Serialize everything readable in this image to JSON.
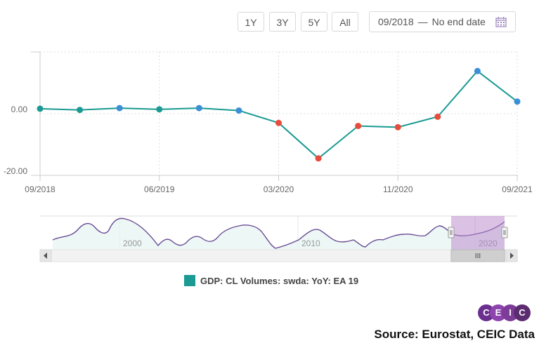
{
  "toolbar": {
    "buttons": [
      "1Y",
      "3Y",
      "5Y",
      "All"
    ],
    "range_start": "09/2018",
    "range_separator": "—",
    "range_end": "No end date"
  },
  "chart_data": {
    "type": "line",
    "x_tick_labels": [
      "09/2018",
      "06/2019",
      "03/2020",
      "11/2020",
      "09/2021"
    ],
    "y_tick_labels": [
      "0.00",
      "-20.00"
    ],
    "ylim": [
      -20,
      20
    ],
    "grid": true,
    "series": [
      {
        "name": "GDP: CL Volumes: swda: YoY: EA 19",
        "color": "#1a9a92",
        "x": [
          "09/2018",
          "12/2018",
          "03/2019",
          "06/2019",
          "09/2019",
          "12/2019",
          "03/2020",
          "06/2020",
          "09/2020",
          "12/2020",
          "03/2021",
          "06/2021",
          "09/2021"
        ],
        "values": [
          1.6,
          1.2,
          1.8,
          1.4,
          1.8,
          1.0,
          -3.0,
          -14.5,
          -4.0,
          -4.4,
          -1.0,
          13.8,
          3.9
        ],
        "marker_colors": [
          "#1a9a92",
          "#1a9a92",
          "#3a8fd6",
          "#1a9a92",
          "#3a8fd6",
          "#3a8fd6",
          "#e74c3c",
          "#e74c3c",
          "#e74c3c",
          "#e74c3c",
          "#e74c3c",
          "#3a8fd6",
          "#3a8fd6"
        ]
      }
    ],
    "navigator": {
      "labels": [
        "2000",
        "2010",
        "2020"
      ],
      "scroll_grip": "III"
    }
  },
  "legend": {
    "label": "GDP: CL Volumes: swda: YoY: EA 19",
    "color": "#1a9a92"
  },
  "logo": {
    "letters": [
      "C",
      "E",
      "I",
      "C"
    ],
    "colors": [
      "#6b2f8f",
      "#8e44ad",
      "#7d3c98",
      "#5b2c6f"
    ]
  },
  "source": "Source: Eurostat, CEIC Data"
}
